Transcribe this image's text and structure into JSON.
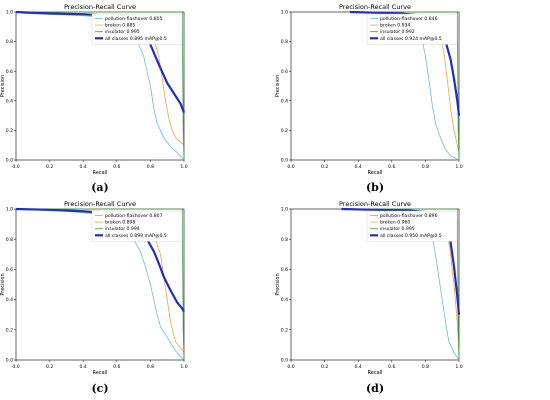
{
  "chart_data": [
    {
      "panel_label": "(a)",
      "type": "line",
      "title": "Precision-Recall Curve",
      "xlabel": "Recall",
      "ylabel": "Precision",
      "xlim": [
        0,
        1
      ],
      "ylim": [
        0,
        1
      ],
      "xticks": [
        "0.0",
        "0.2",
        "0.4",
        "0.6",
        "0.8",
        "1.0"
      ],
      "yticks": [
        "0.0",
        "0.2",
        "0.4",
        "0.6",
        "0.8",
        "1.0"
      ],
      "legend": "top-right",
      "series": [
        {
          "name": "pollution-flashover 0.805",
          "color": "#6fb9dd",
          "width": 0.8,
          "x": [
            0,
            0.05,
            0.2,
            0.4,
            0.55,
            0.62,
            0.66,
            0.7,
            0.73,
            0.76,
            0.78,
            0.8,
            0.82,
            0.84,
            0.86,
            0.88,
            0.9,
            0.93,
            0.96,
            1.0
          ],
          "y": [
            1.0,
            0.99,
            0.985,
            0.975,
            0.96,
            0.94,
            0.91,
            0.85,
            0.78,
            0.7,
            0.6,
            0.5,
            0.35,
            0.25,
            0.2,
            0.15,
            0.12,
            0.08,
            0.05,
            0.0
          ]
        },
        {
          "name": "broken 0.885",
          "color": "#f4a04a",
          "width": 0.8,
          "x": [
            0,
            0.2,
            0.4,
            0.55,
            0.65,
            0.72,
            0.78,
            0.82,
            0.85,
            0.87,
            0.89,
            0.91,
            0.93,
            0.95,
            1.0
          ],
          "y": [
            1.0,
            0.995,
            0.985,
            0.98,
            0.97,
            0.95,
            0.9,
            0.82,
            0.7,
            0.55,
            0.4,
            0.28,
            0.2,
            0.15,
            0.1
          ]
        },
        {
          "name": "insulator 0.995",
          "color": "#3aa33a",
          "width": 0.8,
          "x": [
            0,
            0.3,
            0.99,
            0.995,
            1.0
          ],
          "y": [
            1.0,
            1.0,
            1.0,
            0.2,
            0.0
          ]
        },
        {
          "name": "all classes 0.895 mAP@0.5",
          "color": "#1f2fbf",
          "width": 2.2,
          "x": [
            0,
            0.2,
            0.4,
            0.55,
            0.62,
            0.68,
            0.72,
            0.76,
            0.8,
            0.83,
            0.86,
            0.9,
            0.94,
            0.98,
            1.0
          ],
          "y": [
            1.0,
            0.99,
            0.985,
            0.975,
            0.96,
            0.93,
            0.89,
            0.84,
            0.78,
            0.7,
            0.62,
            0.52,
            0.45,
            0.38,
            0.32
          ]
        }
      ]
    },
    {
      "panel_label": "(b)",
      "type": "line",
      "title": "Precision-Recall Curve",
      "xlabel": "Recall",
      "ylabel": "Precision",
      "xlim": [
        0,
        1
      ],
      "ylim": [
        0,
        1
      ],
      "xticks": [
        "0.0",
        "0.2",
        "0.4",
        "0.6",
        "0.8",
        "1.0"
      ],
      "yticks": [
        "0.0",
        "0.2",
        "0.4",
        "0.6",
        "0.8",
        "1.0"
      ],
      "legend": "top-right",
      "series": [
        {
          "name": "pollution-flashover 0.846",
          "color": "#6fb9dd",
          "width": 0.8,
          "x": [
            0.35,
            0.45,
            0.55,
            0.65,
            0.72,
            0.76,
            0.78,
            0.8,
            0.82,
            0.84,
            0.86,
            0.88,
            0.9,
            0.92,
            0.95,
            1.0
          ],
          "y": [
            1.0,
            0.995,
            0.985,
            0.97,
            0.94,
            0.9,
            0.82,
            0.7,
            0.55,
            0.38,
            0.25,
            0.18,
            0.12,
            0.07,
            0.03,
            0.0
          ]
        },
        {
          "name": "broken 0.934",
          "color": "#f4a04a",
          "width": 0.8,
          "x": [
            0.35,
            0.5,
            0.65,
            0.75,
            0.82,
            0.86,
            0.89,
            0.91,
            0.93,
            0.95,
            0.97,
            1.0
          ],
          "y": [
            1.0,
            0.995,
            0.99,
            0.98,
            0.96,
            0.92,
            0.85,
            0.72,
            0.55,
            0.35,
            0.2,
            0.05
          ]
        },
        {
          "name": "insulator 0.992",
          "color": "#3aa33a",
          "width": 0.8,
          "x": [
            0.35,
            0.6,
            0.99,
            0.995,
            1.0
          ],
          "y": [
            1.0,
            1.0,
            1.0,
            0.2,
            0.0
          ]
        },
        {
          "name": "all classes 0.924 mAP@0.5",
          "color": "#1f2fbf",
          "width": 2.2,
          "x": [
            0.35,
            0.5,
            0.65,
            0.75,
            0.82,
            0.86,
            0.89,
            0.92,
            0.95,
            0.97,
            0.99,
            1.0
          ],
          "y": [
            1.0,
            0.995,
            0.99,
            0.98,
            0.96,
            0.93,
            0.88,
            0.8,
            0.68,
            0.55,
            0.4,
            0.3
          ]
        }
      ]
    },
    {
      "panel_label": "(c)",
      "type": "line",
      "title": "Precision-Recall Curve",
      "xlabel": "Recall",
      "ylabel": "Precision",
      "xlim": [
        0,
        1
      ],
      "ylim": [
        0,
        1
      ],
      "xticks": [
        "0.0",
        "0.2",
        "0.4",
        "0.6",
        "0.8",
        "1.0"
      ],
      "yticks": [
        "0.0",
        "0.2",
        "0.4",
        "0.6",
        "0.8",
        "1.0"
      ],
      "legend": "top-right",
      "series": [
        {
          "name": "pollution-flashover 0.807",
          "color": "#6fb9dd",
          "width": 0.8,
          "x": [
            0,
            0.1,
            0.3,
            0.45,
            0.55,
            0.62,
            0.66,
            0.7,
            0.74,
            0.77,
            0.8,
            0.82,
            0.84,
            0.86,
            0.9,
            0.95,
            1.0
          ],
          "y": [
            1.0,
            0.995,
            0.985,
            0.97,
            0.94,
            0.9,
            0.86,
            0.8,
            0.72,
            0.62,
            0.5,
            0.4,
            0.3,
            0.22,
            0.15,
            0.06,
            0.0
          ]
        },
        {
          "name": "broken 0.898",
          "color": "#f4a04a",
          "width": 0.8,
          "x": [
            0,
            0.3,
            0.5,
            0.62,
            0.7,
            0.76,
            0.8,
            0.83,
            0.86,
            0.88,
            0.9,
            0.92,
            0.95,
            1.0
          ],
          "y": [
            1.0,
            0.995,
            0.985,
            0.97,
            0.95,
            0.92,
            0.87,
            0.8,
            0.7,
            0.55,
            0.4,
            0.25,
            0.12,
            0.05
          ]
        },
        {
          "name": "insulator 0.994",
          "color": "#3aa33a",
          "width": 0.8,
          "x": [
            0,
            0.4,
            0.99,
            0.995,
            1.0
          ],
          "y": [
            1.0,
            1.0,
            1.0,
            0.2,
            0.0
          ]
        },
        {
          "name": "all classes 0.899 mAP@0.5",
          "color": "#1f2fbf",
          "width": 2.2,
          "x": [
            0,
            0.2,
            0.4,
            0.55,
            0.63,
            0.69,
            0.74,
            0.78,
            0.82,
            0.85,
            0.88,
            0.92,
            0.96,
            0.99,
            1.0
          ],
          "y": [
            1.0,
            0.995,
            0.985,
            0.97,
            0.95,
            0.92,
            0.87,
            0.8,
            0.72,
            0.64,
            0.55,
            0.46,
            0.38,
            0.34,
            0.32
          ]
        }
      ]
    },
    {
      "panel_label": "(d)",
      "type": "line",
      "title": "Precision-Recall Curve",
      "xlabel": "Recall",
      "ylabel": "Precision",
      "xlim": [
        0,
        1
      ],
      "ylim": [
        0,
        1
      ],
      "xticks": [
        "0.0",
        "0.2",
        "0.4",
        "0.6",
        "0.8",
        "1.0"
      ],
      "yticks": [
        "0.0",
        "0.2",
        "0.4",
        "0.6",
        "0.8",
        "1.0"
      ],
      "legend": "top-right",
      "series": [
        {
          "name": "pollution-flashover 0.896",
          "color": "#6fb9dd",
          "width": 0.8,
          "x": [
            0.3,
            0.45,
            0.6,
            0.7,
            0.77,
            0.81,
            0.84,
            0.86,
            0.88,
            0.9,
            0.92,
            0.94,
            0.97,
            1.0
          ],
          "y": [
            1.0,
            0.995,
            0.985,
            0.97,
            0.94,
            0.9,
            0.82,
            0.7,
            0.55,
            0.4,
            0.25,
            0.12,
            0.05,
            0.0
          ]
        },
        {
          "name": "broken 0.960",
          "color": "#f4a04a",
          "width": 0.8,
          "x": [
            0.3,
            0.5,
            0.7,
            0.8,
            0.86,
            0.9,
            0.93,
            0.95,
            0.97,
            0.99,
            1.0
          ],
          "y": [
            1.0,
            0.995,
            0.99,
            0.98,
            0.96,
            0.92,
            0.84,
            0.7,
            0.5,
            0.25,
            0.05
          ]
        },
        {
          "name": "insulator 0.995",
          "color": "#3aa33a",
          "width": 0.8,
          "x": [
            0.3,
            0.6,
            0.99,
            0.995,
            1.0
          ],
          "y": [
            1.0,
            1.0,
            1.0,
            0.2,
            0.0
          ]
        },
        {
          "name": "all classes 0.950 mAP@0.5",
          "color": "#1f2fbf",
          "width": 2.2,
          "x": [
            0.3,
            0.5,
            0.7,
            0.8,
            0.86,
            0.9,
            0.93,
            0.95,
            0.97,
            0.99,
            1.0
          ],
          "y": [
            1.0,
            0.995,
            0.99,
            0.98,
            0.96,
            0.93,
            0.87,
            0.78,
            0.62,
            0.42,
            0.3
          ]
        }
      ]
    }
  ]
}
